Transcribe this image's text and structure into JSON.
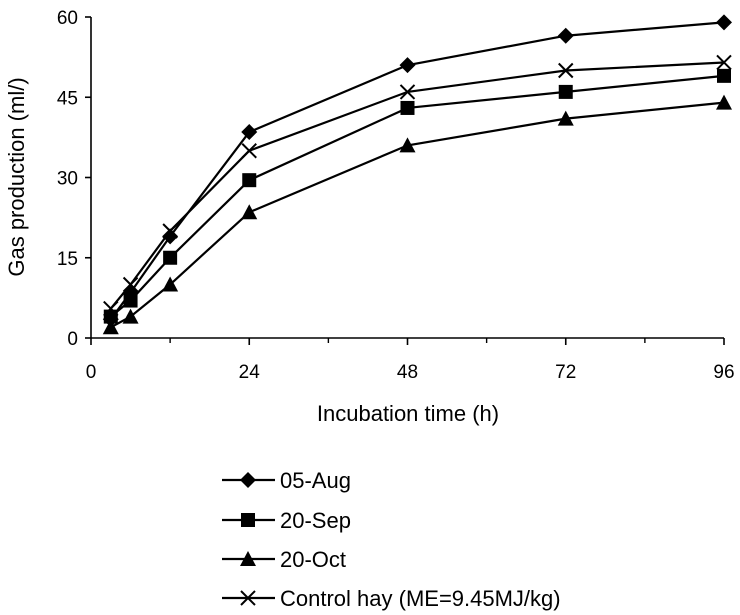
{
  "chart_data": {
    "type": "line",
    "title": "",
    "xlabel": "Incubation time (h)",
    "ylabel": "Gas production (ml/)",
    "xlim": [
      0,
      96
    ],
    "ylim": [
      0,
      60
    ],
    "xticks": [
      "0",
      "24",
      "48",
      "72",
      "96"
    ],
    "yticks": [
      "0",
      "15",
      "30",
      "45",
      "60"
    ],
    "grid": false,
    "legend_position": "bottom",
    "x": [
      3,
      6,
      12,
      24,
      48,
      72,
      96
    ],
    "series": [
      {
        "name": "05-Aug",
        "marker": "diamond",
        "values": [
          3.5,
          8.5,
          19.0,
          38.5,
          51.0,
          56.5,
          59.0
        ]
      },
      {
        "name": "20-Sep",
        "marker": "square",
        "values": [
          4.0,
          7.0,
          15.0,
          29.5,
          43.0,
          46.0,
          49.0
        ]
      },
      {
        "name": "20-Oct",
        "marker": "triangle",
        "values": [
          2.0,
          4.0,
          10.0,
          23.5,
          36.0,
          41.0,
          44.0
        ]
      },
      {
        "name": "Control hay (ME=9.45MJ/kg)",
        "marker": "cross",
        "values": [
          5.5,
          10.0,
          20.0,
          35.0,
          46.0,
          50.0,
          51.5
        ]
      }
    ]
  }
}
